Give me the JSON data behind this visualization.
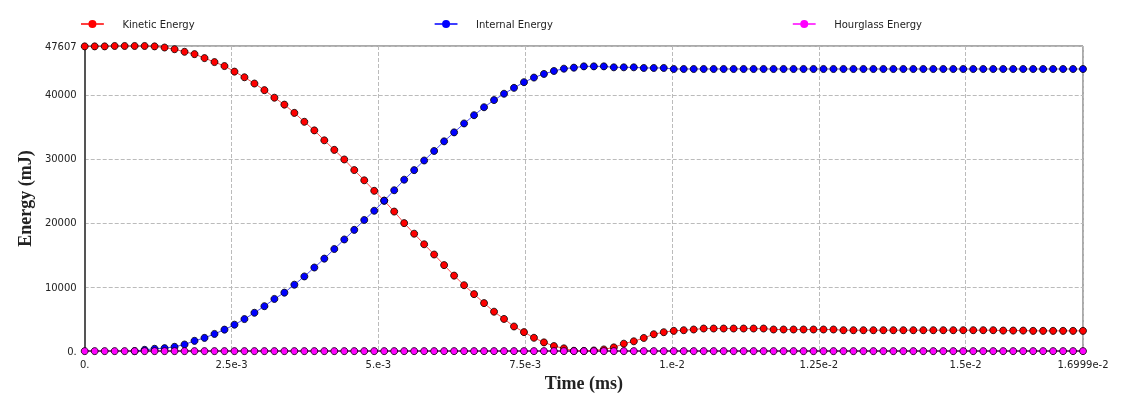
{
  "chart_data": {
    "type": "line",
    "xlabel": "Time (ms)",
    "ylabel": "Energy (mJ)",
    "xlim": [
      0,
      0.016999
    ],
    "ylim": [
      0,
      47607
    ],
    "xticks": [
      {
        "value": 0,
        "label": "0."
      },
      {
        "value": 0.0025,
        "label": "2.5e-3"
      },
      {
        "value": 0.005,
        "label": "5.e-3"
      },
      {
        "value": 0.0075,
        "label": "7.5e-3"
      },
      {
        "value": 0.01,
        "label": "1.e-2"
      },
      {
        "value": 0.0125,
        "label": "1.25e-2"
      },
      {
        "value": 0.015,
        "label": "1.5e-2"
      },
      {
        "value": 0.016999,
        "label": "1.6999e-2"
      }
    ],
    "yticks": [
      {
        "value": 0,
        "label": "0."
      },
      10000,
      20000,
      30000,
      40000,
      47607
    ],
    "grid": true,
    "legend": "top",
    "marker": "circle",
    "line_style": "solid",
    "x": [
      0,
      0.00017,
      0.00034,
      0.00051,
      0.00068,
      0.00085,
      0.00102,
      0.00119,
      0.00136,
      0.00153,
      0.0017,
      0.00187,
      0.00204,
      0.00221,
      0.00238,
      0.00255,
      0.00272,
      0.00289,
      0.00306,
      0.00323,
      0.0034,
      0.00357,
      0.00374,
      0.00391,
      0.00408,
      0.00425,
      0.00442,
      0.00459,
      0.00476,
      0.00493,
      0.0051,
      0.00527,
      0.00544,
      0.00561,
      0.00578,
      0.00595,
      0.00612,
      0.00629,
      0.00646,
      0.00663,
      0.0068,
      0.00697,
      0.00714,
      0.00731,
      0.00748,
      0.00765,
      0.00782,
      0.00799,
      0.00816,
      0.00833,
      0.0085,
      0.00867,
      0.00884,
      0.00901,
      0.00918,
      0.00935,
      0.00952,
      0.00969,
      0.00986,
      0.01003,
      0.0102,
      0.01037,
      0.01054,
      0.01071,
      0.01088,
      0.01105,
      0.01122,
      0.01139,
      0.01156,
      0.01173,
      0.0119,
      0.01207,
      0.01224,
      0.01241,
      0.01258,
      0.01275,
      0.01292,
      0.01309,
      0.01326,
      0.01343,
      0.0136,
      0.01377,
      0.01394,
      0.01411,
      0.01428,
      0.01445,
      0.01462,
      0.01479,
      0.01496,
      0.01513,
      0.0153,
      0.01547,
      0.01564,
      0.01581,
      0.01598,
      0.01615,
      0.01632,
      0.01649,
      0.01666,
      0.01683,
      0.016999
    ],
    "series": [
      {
        "name": "Kinetic Energy",
        "color": "#ff0000",
        "values": [
          47550,
          47550,
          47550,
          47607,
          47607,
          47607,
          47607,
          47550,
          47370,
          47110,
          46700,
          46340,
          45720,
          45100,
          44480,
          43610,
          42730,
          41750,
          40720,
          39540,
          38460,
          37170,
          35780,
          34440,
          32890,
          31400,
          29900,
          28250,
          26650,
          25010,
          23470,
          21770,
          19970,
          18320,
          16670,
          15070,
          13420,
          11780,
          10280,
          8890,
          7490,
          6150,
          5020,
          3840,
          2960,
          2080,
          1360,
          790,
          430,
          50,
          30,
          100,
          260,
          580,
          1160,
          1530,
          2050,
          2630,
          2950,
          3160,
          3260,
          3370,
          3520,
          3520,
          3520,
          3520,
          3520,
          3520,
          3520,
          3370,
          3370,
          3370,
          3370,
          3370,
          3370,
          3370,
          3260,
          3260,
          3260,
          3260,
          3260,
          3260,
          3260,
          3260,
          3260,
          3260,
          3260,
          3260,
          3260,
          3260,
          3260,
          3260,
          3200,
          3200,
          3200,
          3160,
          3160,
          3160,
          3160,
          3160,
          3160
        ]
      },
      {
        "name": "Internal Energy",
        "color": "#0000ff",
        "values": [
          null,
          null,
          null,
          null,
          null,
          0,
          200,
          360,
          460,
          670,
          1030,
          1600,
          2060,
          2680,
          3350,
          4120,
          5000,
          5980,
          7010,
          8140,
          9120,
          10360,
          11650,
          13040,
          14430,
          15930,
          17420,
          18920,
          20460,
          21900,
          23470,
          25100,
          26750,
          28240,
          29740,
          31230,
          32730,
          34130,
          35520,
          36810,
          38050,
          39170,
          40160,
          41080,
          41960,
          42680,
          43250,
          43710,
          44070,
          44230,
          44430,
          44430,
          44430,
          44280,
          44280,
          44280,
          44180,
          44180,
          44180,
          44020,
          44020,
          44020,
          44020,
          44020,
          44020,
          44020,
          44020,
          44020,
          44020,
          44020,
          44020,
          44020,
          44020,
          44020,
          44020,
          44020,
          44020,
          44020,
          44020,
          44020,
          44020,
          44020,
          44020,
          44020,
          44020,
          44020,
          44020,
          44020,
          44020,
          44020,
          44020,
          44020,
          44020,
          44020,
          44020,
          44020,
          44020,
          44020,
          44020,
          44020,
          44020
        ]
      },
      {
        "name": "Hourglass Energy",
        "color": "#ff00ff",
        "values": [
          0,
          0,
          0,
          0,
          0,
          0,
          0,
          0,
          0,
          0,
          0,
          0,
          0,
          0,
          0,
          0,
          0,
          0,
          0,
          0,
          0,
          0,
          0,
          0,
          0,
          0,
          0,
          0,
          0,
          0,
          0,
          0,
          0,
          0,
          0,
          0,
          0,
          0,
          0,
          0,
          0,
          0,
          0,
          0,
          0,
          0,
          0,
          0,
          0,
          0,
          0,
          0,
          0,
          0,
          0,
          0,
          0,
          0,
          0,
          0,
          0,
          0,
          0,
          0,
          0,
          0,
          0,
          0,
          0,
          0,
          0,
          0,
          0,
          0,
          0,
          0,
          0,
          0,
          0,
          0,
          0,
          0,
          0,
          0,
          0,
          0,
          0,
          0,
          0,
          0,
          0,
          0,
          0,
          0,
          0,
          0,
          0,
          0,
          0,
          0,
          0
        ]
      }
    ]
  }
}
